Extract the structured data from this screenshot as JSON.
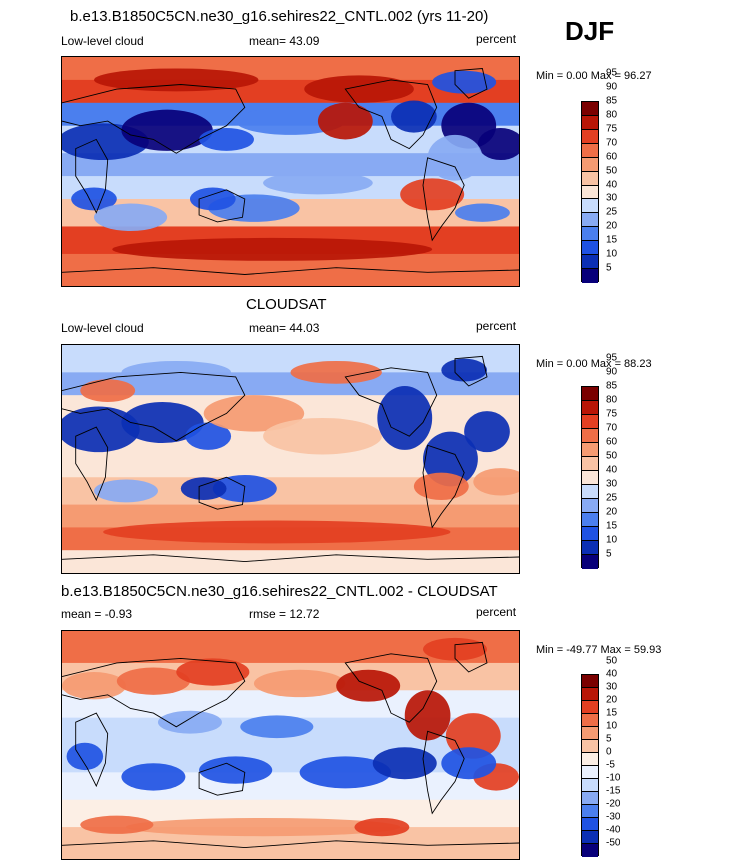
{
  "season": "DJF",
  "colors": {
    "palette11": [
      "#08007a",
      "#0b2fb4",
      "#1f52e3",
      "#4b7fee",
      "#88aaf3",
      "#c8dcfc",
      "#fbe6d8",
      "#f9c3a4",
      "#f59b72",
      "#ef6e47",
      "#e33f22",
      "#b81607",
      "#7a0000"
    ],
    "palette_diff": [
      "#08007a",
      "#0b2fb4",
      "#1f52e3",
      "#4b7fee",
      "#88aaf3",
      "#c8dcfc",
      "#eaf1fe",
      "#fcefe5",
      "#f9c3a4",
      "#f59b72",
      "#ef6e47",
      "#e33f22",
      "#b81607",
      "#7a0000"
    ],
    "coast": "#000000"
  },
  "chart_data": [
    {
      "type": "heatmap",
      "title": "b.e13.B1850C5CN.ne30_g16.sehires22_CNTL.002 (yrs 11-20)",
      "left_label": "Low-level cloud",
      "center_label": "mean=  43.09",
      "right_label": "percent",
      "minmax": "Min =   0.00 Max =  96.27",
      "colorbar_levels": [
        "5",
        "10",
        "15",
        "20",
        "25",
        "30",
        "40",
        "50",
        "60",
        "70",
        "75",
        "80",
        "85",
        "90",
        "95"
      ],
      "variant": "model"
    },
    {
      "type": "heatmap",
      "title": "CLOUDSAT",
      "left_label": "Low-level cloud",
      "center_label": "mean=  44.03",
      "right_label": "percent",
      "minmax": "Min =   0.00 Max =  88.23",
      "colorbar_levels": [
        "5",
        "10",
        "15",
        "20",
        "25",
        "30",
        "40",
        "50",
        "60",
        "70",
        "75",
        "80",
        "85",
        "90",
        "95"
      ],
      "variant": "obs"
    },
    {
      "type": "heatmap",
      "title": "b.e13.B1850C5CN.ne30_g16.sehires22_CNTL.002 - CLOUDSAT",
      "left_label": "mean =  -0.93",
      "center_label": "rmse =  12.72",
      "right_label": "percent",
      "minmax": "Min = -49.77 Max =  59.93",
      "colorbar_levels": [
        "-50",
        "-40",
        "-30",
        "-20",
        "-15",
        "-10",
        "-5",
        "0",
        "5",
        "10",
        "15",
        "20",
        "30",
        "40",
        "50"
      ],
      "variant": "diff"
    }
  ]
}
